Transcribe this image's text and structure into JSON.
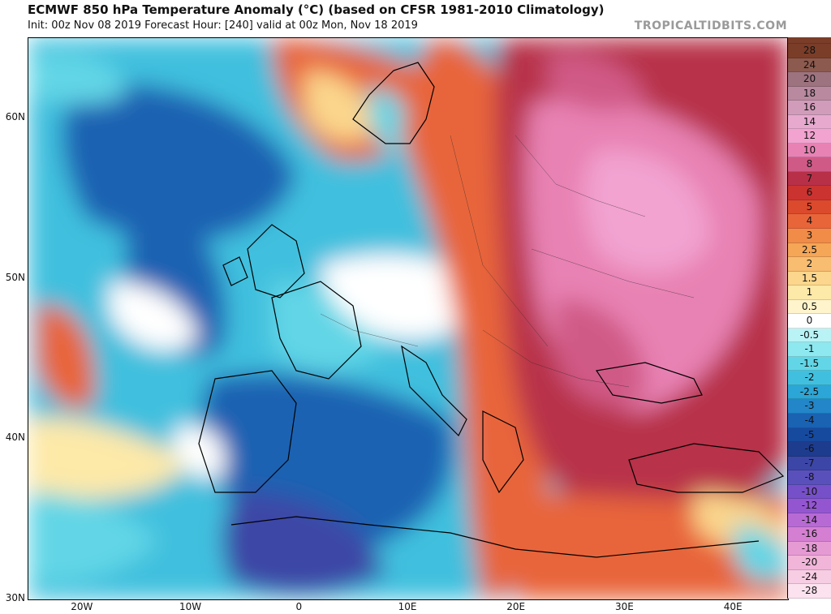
{
  "header": {
    "title": "ECMWF 850 hPa Temperature Anomaly (°C) (based on CFSR 1981-2010 Climatology)",
    "subtitle": "Init: 00z Nov 08 2019   Forecast Hour: [240]   valid at 00z Mon, Nov 18 2019",
    "credit": "TROPICALTIDBITS.COM"
  },
  "axes": {
    "lat_labels": [
      "60N",
      "50N",
      "40N",
      "30N"
    ],
    "lat_values": [
      60,
      50,
      40,
      30
    ],
    "lon_labels": [
      "20W",
      "10W",
      "0",
      "10E",
      "20E",
      "30E",
      "40E"
    ],
    "lon_values": [
      -20,
      -10,
      0,
      10,
      20,
      30,
      40
    ],
    "lat_range": [
      30,
      65
    ],
    "lon_range": [
      -25,
      45
    ]
  },
  "colorbar": {
    "labels": [
      "28",
      "24",
      "20",
      "18",
      "16",
      "14",
      "12",
      "10",
      "8",
      "7",
      "6",
      "5",
      "4",
      "3",
      "2.5",
      "2",
      "1.5",
      "1",
      "0.5",
      "0",
      "-0.5",
      "-1",
      "-1.5",
      "-2",
      "-2.5",
      "-3",
      "-4",
      "-5",
      "-6",
      "-7",
      "-8",
      "-10",
      "-12",
      "-14",
      "-16",
      "-18",
      "-20",
      "-24",
      "-28"
    ],
    "colors": [
      "#7a3d28",
      "#8c5a4e",
      "#9e7380",
      "#b8899f",
      "#d19cba",
      "#e8a9cf",
      "#f2a3d0",
      "#e882b4",
      "#d05a86",
      "#b83048",
      "#cb3330",
      "#db4a2c",
      "#e8653a",
      "#f08c48",
      "#f5a656",
      "#f8bd70",
      "#fbd68c",
      "#fde9a8",
      "#fff4cc",
      "#ffffff",
      "#b9f3f5",
      "#8de8ef",
      "#62d6e6",
      "#40c0de",
      "#2ba6d6",
      "#2286c8",
      "#1a62b2",
      "#164a9e",
      "#1e3c8e",
      "#3c46a6",
      "#5a50bc",
      "#7650c8",
      "#9456d0",
      "#b86ad4",
      "#d47fd2",
      "#e69ad4",
      "#f0b5d8",
      "#f6cde2",
      "#fbe2ee"
    ]
  },
  "chart_data": {
    "type": "heatmap",
    "title": "ECMWF 850 hPa Temperature Anomaly (°C) (based on CFSR 1981-2010 Climatology)",
    "variable": "850 hPa Temperature Anomaly",
    "units": "°C",
    "model": "ECMWF",
    "climatology": "CFSR 1981-2010",
    "init": "00z Nov 08 2019",
    "forecast_hour": 240,
    "valid": "00z Mon, Nov 18 2019",
    "lat_range": [
      30,
      65
    ],
    "lon_range": [
      -25,
      45
    ],
    "colorbar_levels": [
      28,
      24,
      20,
      18,
      16,
      14,
      12,
      10,
      8,
      7,
      6,
      5,
      4,
      3,
      2.5,
      2,
      1.5,
      1,
      0.5,
      0,
      -0.5,
      -1,
      -1.5,
      -2,
      -2.5,
      -3,
      -4,
      -5,
      -6,
      -7,
      -8,
      -10,
      -12,
      -14,
      -16,
      -18,
      -20,
      -24,
      -28
    ]
  }
}
